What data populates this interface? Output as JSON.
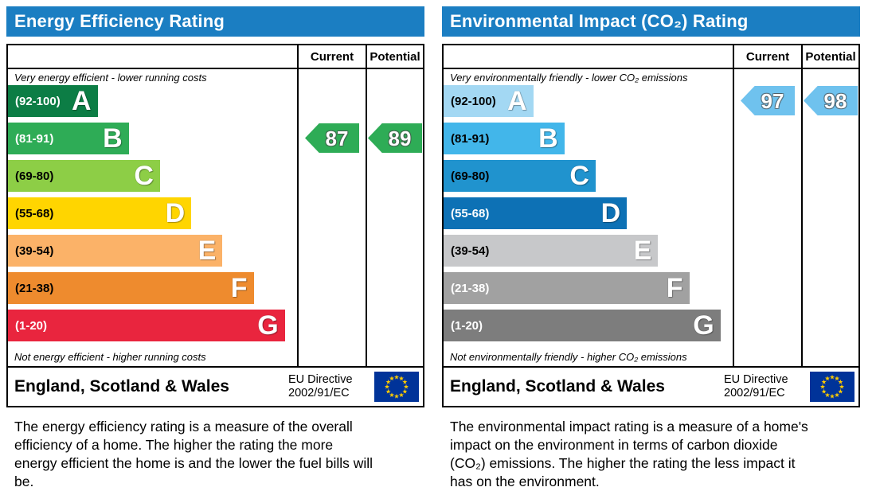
{
  "header_bg": "#1b7ec2",
  "eu_flag": {
    "field": "#003399",
    "stars": "#ffcc00"
  },
  "chart_data": [
    {
      "type": "bar",
      "title": "Energy Efficiency Rating",
      "columns": {
        "current": "Current",
        "potential": "Potential"
      },
      "top_caption": "Very energy efficient - lower running costs",
      "bottom_caption": "Not energy efficient - higher running costs",
      "bands": [
        {
          "letter": "A",
          "range": "(92-100)",
          "min": 92,
          "max": 100,
          "color": "#0c7d45",
          "label_color": "#ffffff"
        },
        {
          "letter": "B",
          "range": "(81-91)",
          "min": 81,
          "max": 91,
          "color": "#2eac56",
          "label_color": "#ffffff"
        },
        {
          "letter": "C",
          "range": "(69-80)",
          "min": 69,
          "max": 80,
          "color": "#8dce46",
          "label_color": "#000000"
        },
        {
          "letter": "D",
          "range": "(55-68)",
          "min": 55,
          "max": 68,
          "color": "#ffd500",
          "label_color": "#000000"
        },
        {
          "letter": "E",
          "range": "(39-54)",
          "min": 39,
          "max": 54,
          "color": "#fbb268",
          "label_color": "#000000"
        },
        {
          "letter": "F",
          "range": "(21-38)",
          "min": 21,
          "max": 38,
          "color": "#ee8b2e",
          "label_color": "#000000"
        },
        {
          "letter": "G",
          "range": "(1-20)",
          "min": 1,
          "max": 20,
          "color": "#e9253e",
          "label_color": "#ffffff"
        }
      ],
      "current": {
        "value": 87,
        "band": "B",
        "color": "#2eac56"
      },
      "potential": {
        "value": 89,
        "band": "B",
        "color": "#2eac56"
      },
      "footer": {
        "region": "England, Scotland & Wales",
        "directive_line1": "EU Directive",
        "directive_line2": "2002/91/EC"
      },
      "description": "The energy efficiency rating is a measure of the overall efficiency of a home. The higher the rating the more energy efficient the home is and the lower the fuel bills will be."
    },
    {
      "type": "bar",
      "title": "Environmental Impact (CO₂) Rating",
      "columns": {
        "current": "Current",
        "potential": "Potential"
      },
      "top_caption": "Very environmentally friendly - lower CO₂ emissions",
      "bottom_caption": "Not environmentally friendly - higher CO₂ emissions",
      "bands": [
        {
          "letter": "A",
          "range": "(92-100)",
          "min": 92,
          "max": 100,
          "color": "#a3d8f3",
          "label_color": "#000000"
        },
        {
          "letter": "B",
          "range": "(81-91)",
          "min": 81,
          "max": 91,
          "color": "#42b6ea",
          "label_color": "#000000"
        },
        {
          "letter": "C",
          "range": "(69-80)",
          "min": 69,
          "max": 80,
          "color": "#2093ce",
          "label_color": "#000000"
        },
        {
          "letter": "D",
          "range": "(55-68)",
          "min": 55,
          "max": 68,
          "color": "#0d71b5",
          "label_color": "#ffffff"
        },
        {
          "letter": "E",
          "range": "(39-54)",
          "min": 39,
          "max": 54,
          "color": "#c7c8ca",
          "label_color": "#000000"
        },
        {
          "letter": "F",
          "range": "(21-38)",
          "min": 21,
          "max": 38,
          "color": "#a1a1a1",
          "label_color": "#ffffff"
        },
        {
          "letter": "G",
          "range": "(1-20)",
          "min": 1,
          "max": 20,
          "color": "#7d7d7d",
          "label_color": "#ffffff"
        }
      ],
      "current": {
        "value": 97,
        "band": "A",
        "color": "#6fc2ee"
      },
      "potential": {
        "value": 98,
        "band": "A",
        "color": "#6fc2ee"
      },
      "footer": {
        "region": "England, Scotland & Wales",
        "directive_line1": "EU Directive",
        "directive_line2": "2002/91/EC"
      },
      "description": "The environmental impact rating is a measure of a home's impact on the environment in terms of carbon dioxide (CO₂) emissions. The higher the rating the less impact it has on the environment."
    }
  ]
}
